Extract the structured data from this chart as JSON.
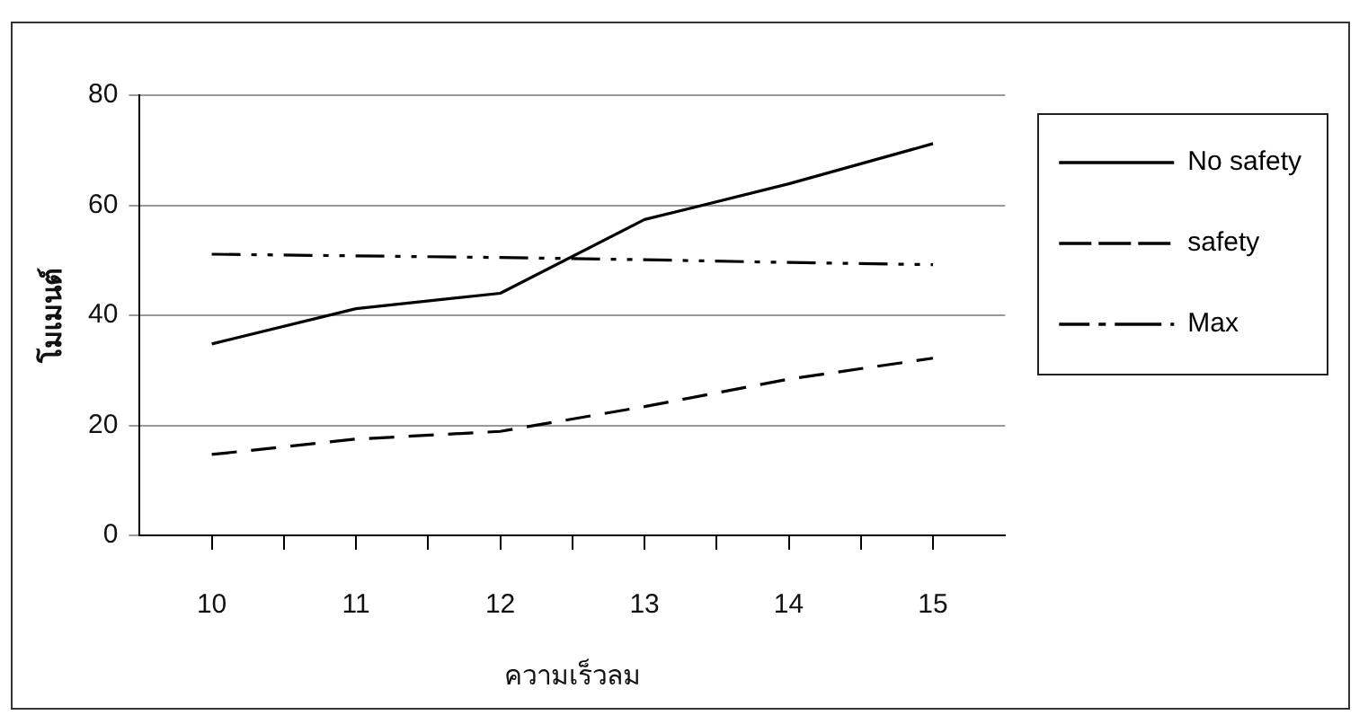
{
  "chart_data": {
    "type": "line",
    "xlabel": "ความเร็วลม",
    "ylabel": "โมเมนต์",
    "x": [
      10,
      11,
      12,
      13,
      14,
      15
    ],
    "series": [
      {
        "name": "No safety",
        "color": "#000000",
        "line_style": "solid",
        "values": [
          34.8,
          41.2,
          44,
          57.4,
          63.9,
          71.2
        ]
      },
      {
        "name": "safety",
        "color": "#000000",
        "line_style": "dashed",
        "values": [
          14.7,
          17.5,
          18.9,
          23.4,
          28.4,
          32.2
        ]
      },
      {
        "name": "Max",
        "color": "#000000",
        "line_style": "dashdot",
        "values": [
          51.1,
          50.8,
          50.5,
          50.1,
          49.6,
          49.2
        ]
      }
    ],
    "xlim": [
      9.5,
      15.5
    ],
    "xticks": [
      10,
      {
        "value": 10.5,
        "label": null
      },
      11,
      {
        "value": 11.5,
        "label": null
      },
      12,
      {
        "value": 12.5,
        "label": null
      },
      13,
      {
        "value": 13.5,
        "label": null
      },
      14,
      {
        "value": 14.5,
        "label": null
      },
      15
    ],
    "ylim": [
      0,
      80
    ],
    "yticks": [
      0,
      20,
      40,
      60,
      80
    ],
    "grid": "y",
    "legend": "right",
    "marker": "none"
  }
}
